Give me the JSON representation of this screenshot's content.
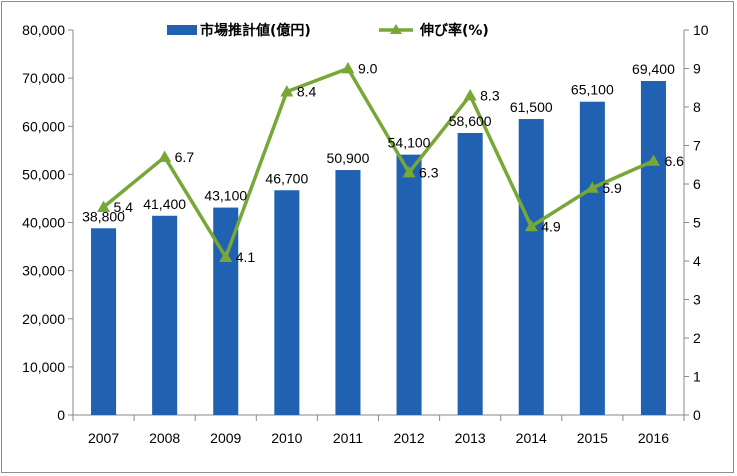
{
  "chart_data": {
    "type": "bar+line",
    "categories": [
      "2007",
      "2008",
      "2009",
      "2010",
      "2011",
      "2012",
      "2013",
      "2014",
      "2015",
      "2016"
    ],
    "series": [
      {
        "name": "市場推計値(億円)",
        "type": "bar",
        "axis": "left",
        "color": "#2161B1",
        "values": [
          38800,
          41400,
          43100,
          46700,
          50900,
          54100,
          58600,
          61500,
          65100,
          69400
        ],
        "labels": [
          "38,800",
          "41,400",
          "43,100",
          "46,700",
          "50,900",
          "54,100",
          "58,600",
          "61,500",
          "65,100",
          "69,400"
        ]
      },
      {
        "name": "伸び率(%)",
        "type": "line",
        "axis": "right",
        "color": "#77A737",
        "marker": "triangle",
        "values": [
          5.4,
          6.7,
          4.1,
          8.4,
          9.0,
          6.3,
          8.3,
          4.9,
          5.9,
          6.6
        ],
        "labels": [
          "5.4",
          "6.7",
          "4.1",
          "8.4",
          "9.0",
          "6.3",
          "8.3",
          "4.9",
          "5.9",
          "6.6"
        ]
      }
    ],
    "y_left": {
      "min": 0,
      "max": 80000,
      "step": 10000,
      "tick_labels": [
        "0",
        "10,000",
        "20,000",
        "30,000",
        "40,000",
        "50,000",
        "60,000",
        "70,000",
        "80,000"
      ]
    },
    "y_right": {
      "min": 0,
      "max": 10,
      "step": 1,
      "tick_labels": [
        "0",
        "1",
        "2",
        "3",
        "4",
        "5",
        "6",
        "7",
        "8",
        "9",
        "10"
      ]
    },
    "grid": false,
    "legend": "top-center"
  }
}
